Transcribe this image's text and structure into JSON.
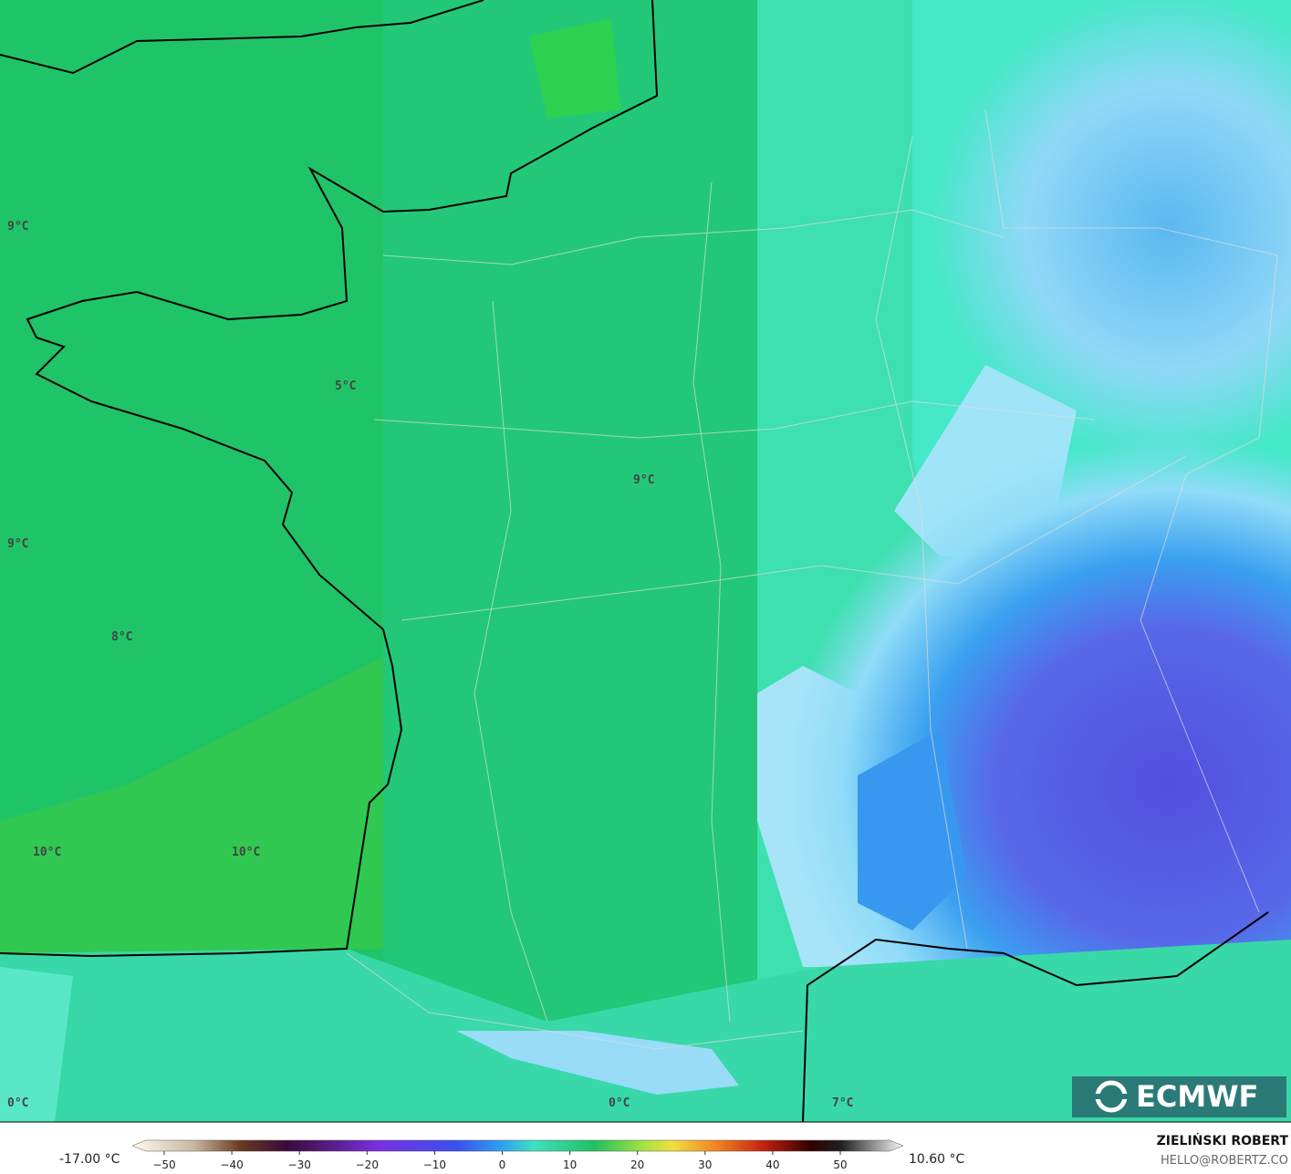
{
  "map": {
    "labels": [
      "9°C",
      "5°C",
      "9°C",
      "9°C",
      "8°C",
      "10°C",
      "10°C",
      "0°C",
      "0°C",
      "7°C"
    ]
  },
  "logo": "ECMWF",
  "colorbar": {
    "min_label": "-17.00 °C",
    "max_label": "10.60 °C",
    "ticks": [
      "−50",
      "−40",
      "−30",
      "−20",
      "−10",
      "0",
      "10",
      "20",
      "30",
      "40",
      "50"
    ]
  },
  "credit": {
    "author": "ZIELIŃSKI ROBERT",
    "email": "HELLO@ROBERTZ.CO"
  }
}
